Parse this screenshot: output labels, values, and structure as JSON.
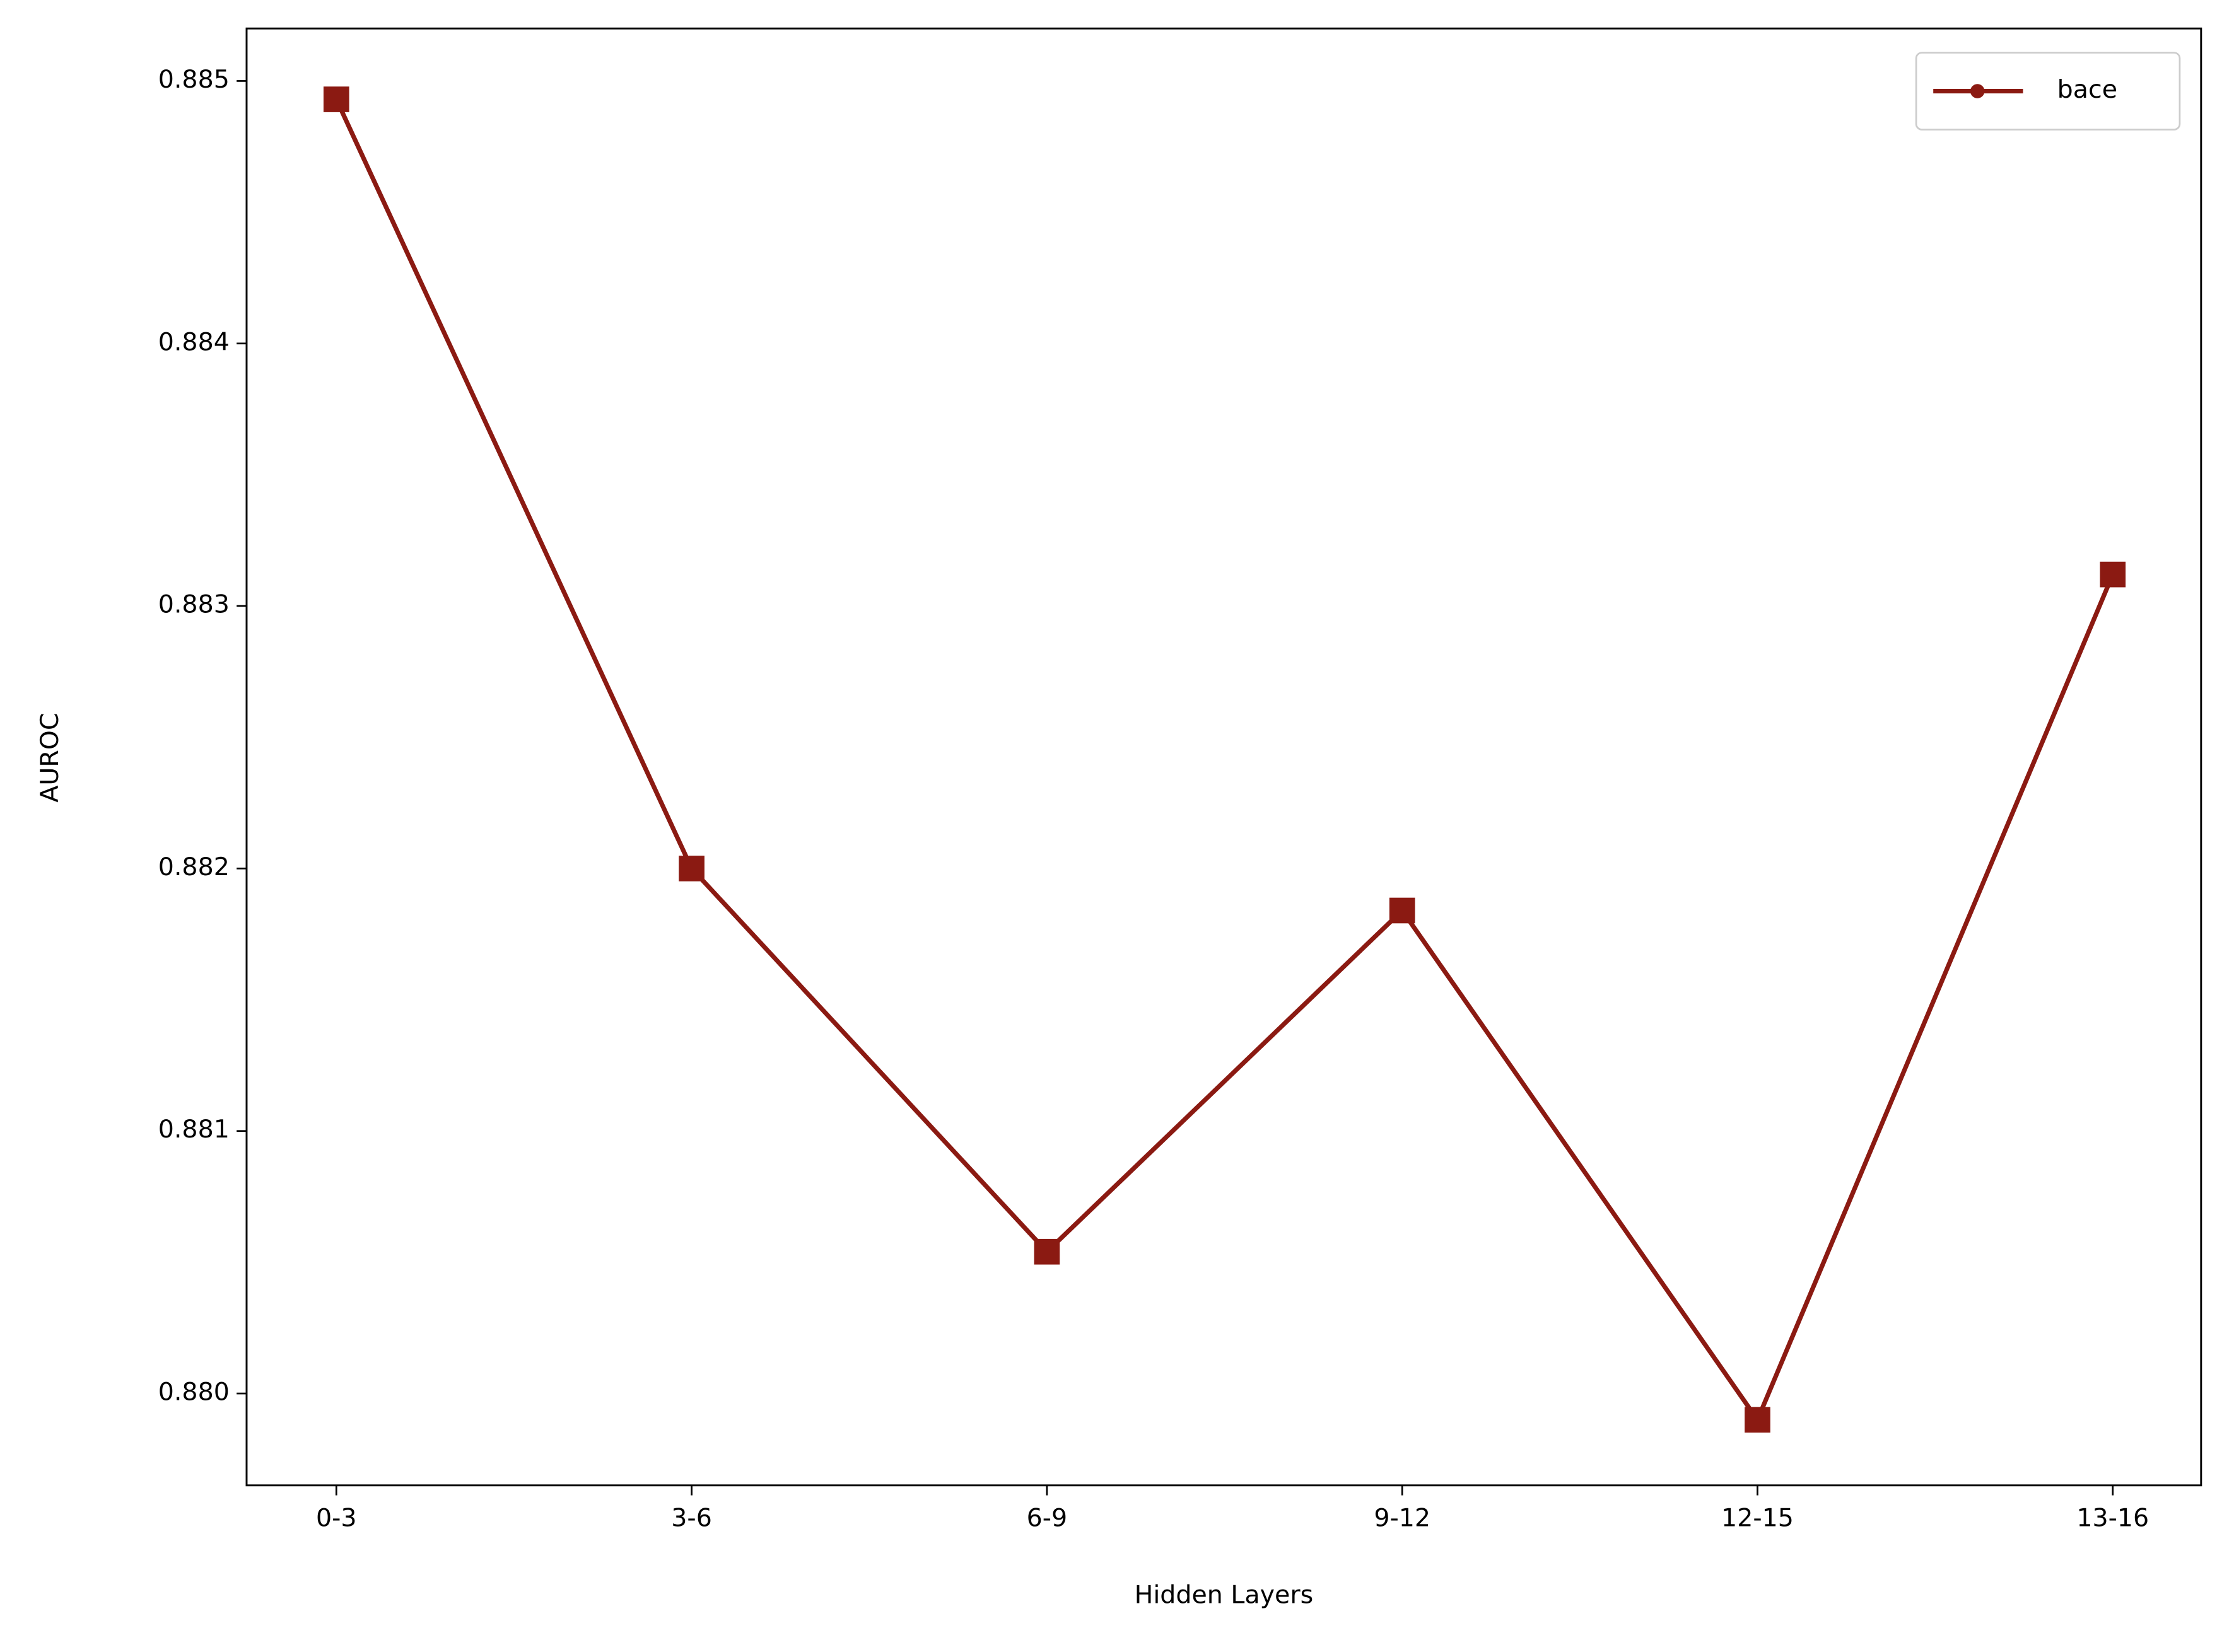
{
  "chart_data": {
    "type": "line",
    "x_label": "Hidden Layers",
    "y_label": "AUROC",
    "categories": [
      "0-3",
      "3-6",
      "6-9",
      "9-12",
      "12-15",
      "13-16"
    ],
    "series": [
      {
        "name": "bace",
        "color": "#8b1a12",
        "values": [
          0.88493,
          0.882,
          0.88054,
          0.88184,
          0.8799,
          0.88312
        ]
      }
    ],
    "ylim": [
      0.87965,
      0.8852
    ],
    "yticks": [
      {
        "value": 0.88,
        "label": "0.880"
      },
      {
        "value": 0.881,
        "label": "0.881"
      },
      {
        "value": 0.882,
        "label": "0.882"
      },
      {
        "value": 0.883,
        "label": "0.883"
      },
      {
        "value": 0.884,
        "label": "0.884"
      },
      {
        "value": 0.885,
        "label": "0.885"
      }
    ],
    "legend": "upper right",
    "grid": false
  }
}
